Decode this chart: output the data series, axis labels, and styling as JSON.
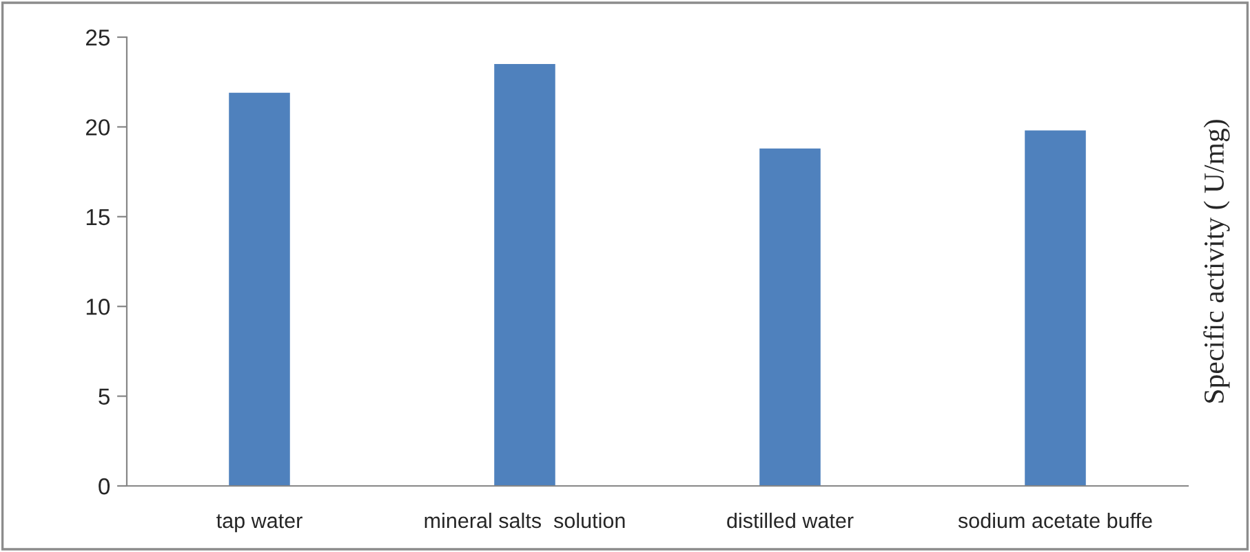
{
  "chart_data": {
    "type": "bar",
    "ylabel": "Specific activity ( U/mg)",
    "categories": [
      "tap water",
      "mineral salts  solution",
      "distilled water",
      "sodium acetate buffe"
    ],
    "values": [
      21.9,
      23.5,
      18.8,
      19.8
    ],
    "color": "#4f81bd",
    "ylim": [
      0,
      25
    ],
    "yticks": [
      0,
      5,
      10,
      15,
      20,
      25
    ],
    "grid": false,
    "legend": false
  }
}
